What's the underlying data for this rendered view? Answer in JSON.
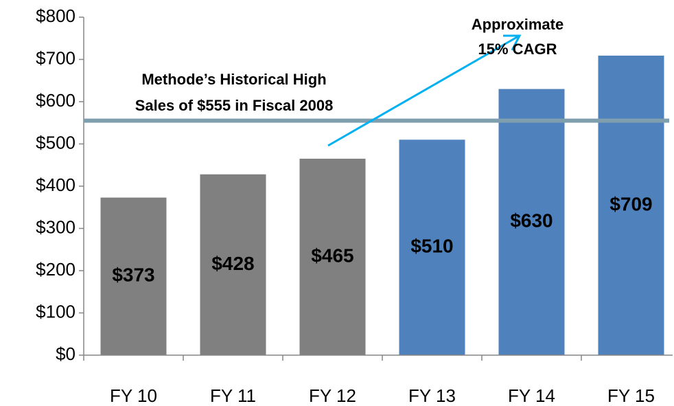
{
  "chart_data": {
    "type": "bar",
    "categories": [
      "FY 10",
      "FY 11",
      "FY 12",
      "FY 13",
      "FY 14",
      "FY 15"
    ],
    "values": [
      373,
      428,
      465,
      510,
      630,
      709
    ],
    "value_labels": [
      "$373",
      "$428",
      "$465",
      "$510",
      "$630",
      "$709"
    ],
    "colors": [
      "#808080",
      "#808080",
      "#808080",
      "#4f81bd",
      "#4f81bd",
      "#4f81bd"
    ],
    "ylim": [
      0,
      800
    ],
    "yticks": [
      {
        "value": 0,
        "label": "$0"
      },
      {
        "value": 100,
        "label": "$100"
      },
      {
        "value": 200,
        "label": "$200"
      },
      {
        "value": 300,
        "label": "$300"
      },
      {
        "value": 400,
        "label": "$400"
      },
      {
        "value": 500,
        "label": "$500"
      },
      {
        "value": 600,
        "label": "$600"
      },
      {
        "value": 700,
        "label": "$700"
      },
      {
        "value": 800,
        "label": "$800"
      }
    ],
    "grid": false,
    "reference_line": {
      "value": 555,
      "color": "#7f9fae",
      "label": [
        "Methode’s Historical High",
        "Sales of $555 in Fiscal 2008"
      ]
    },
    "annotations": [
      {
        "text": [
          "Approximate",
          "15% CAGR"
        ],
        "color": "#00b0f0"
      }
    ]
  }
}
